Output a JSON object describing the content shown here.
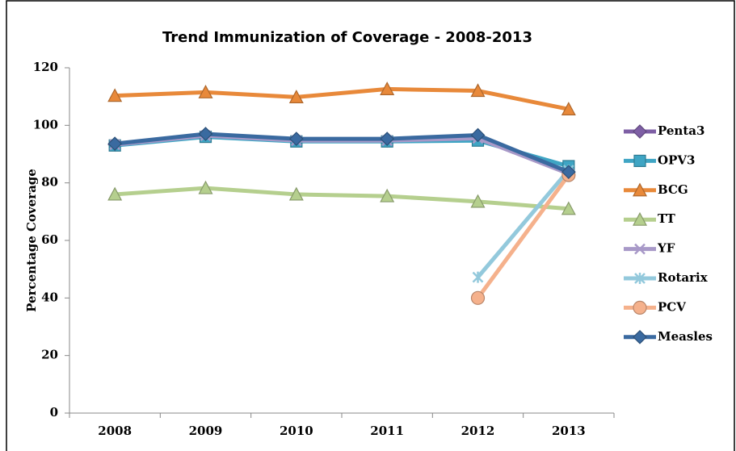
{
  "chart_data": {
    "type": "line",
    "title": "Trend Immunization of Coverage - 2008-2013",
    "y_label": "Percentage Coverage",
    "categories": [
      "2008",
      "2009",
      "2010",
      "2011",
      "2012",
      "2013"
    ],
    "ylim": [
      0,
      120
    ],
    "yticks": [
      0,
      20,
      40,
      60,
      80,
      100,
      120
    ],
    "legend": "right",
    "series": [
      {
        "name": "Penta3",
        "color": "#7e5fa5",
        "marker": "diamond",
        "values": [
          93.3,
          96.6,
          95,
          94.7,
          95.8,
          83.8
        ]
      },
      {
        "name": "OPV3",
        "color": "#3fa5c4",
        "marker": "square",
        "values": [
          93,
          96,
          94.4,
          94.4,
          94.7,
          85.8
        ]
      },
      {
        "name": "BCG",
        "color": "#e8893a",
        "marker": "triangle",
        "values": [
          110.3,
          111.5,
          109.8,
          112.6,
          112,
          105.6
        ]
      },
      {
        "name": "TT",
        "color": "#b5cf8e",
        "marker": "triangle",
        "values": [
          76,
          78.2,
          76,
          75.4,
          73.5,
          71
        ]
      },
      {
        "name": "YF",
        "color": "#a899c8",
        "marker": "x",
        "values": [
          93.3,
          96.4,
          94.7,
          94.7,
          95.5,
          83.2
        ]
      },
      {
        "name": "Rotarix",
        "color": "#93c9dc",
        "marker": "star",
        "values": [
          null,
          null,
          null,
          null,
          47.2,
          84.4
        ]
      },
      {
        "name": "PCV",
        "color": "#f5b18c",
        "marker": "circle",
        "values": [
          null,
          null,
          null,
          null,
          40,
          82.7
        ]
      },
      {
        "name": "Measles",
        "color": "#3a6aa0",
        "marker": "diamond",
        "values": [
          93.6,
          97,
          95.3,
          95.3,
          96.6,
          83.8
        ]
      }
    ]
  }
}
